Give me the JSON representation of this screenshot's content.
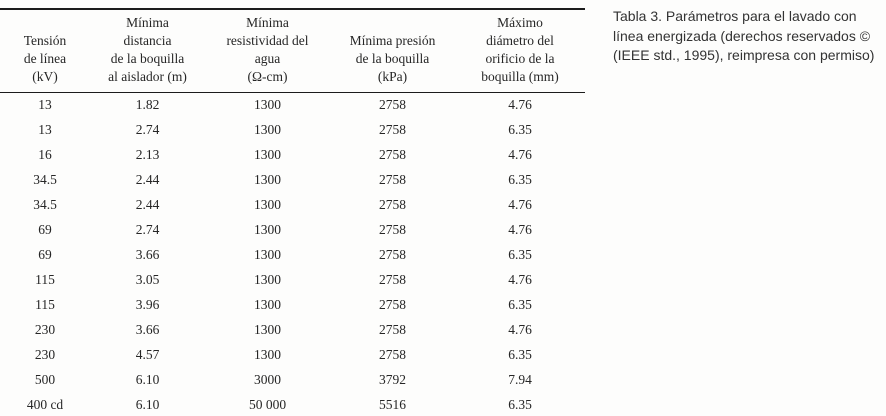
{
  "table": {
    "col_headers": [
      "Tensión\nde línea\n(kV)",
      "Mínima\ndistancia\nde la boquilla\nal aislador (m)",
      "Mínima\nresistividad del\nagua\n(Ω-cm)",
      "Mínima presión\nde la boquilla\n(kPa)",
      "Máximo\ndiámetro del\norificio de la\nboquilla (mm)"
    ],
    "rows": [
      [
        "13",
        "1.82",
        "1300",
        "2758",
        "4.76"
      ],
      [
        "13",
        "2.74",
        "1300",
        "2758",
        "6.35"
      ],
      [
        "16",
        "2.13",
        "1300",
        "2758",
        "4.76"
      ],
      [
        "34.5",
        "2.44",
        "1300",
        "2758",
        "6.35"
      ],
      [
        "34.5",
        "2.44",
        "1300",
        "2758",
        "4.76"
      ],
      [
        "69",
        "2.74",
        "1300",
        "2758",
        "4.76"
      ],
      [
        "69",
        "3.66",
        "1300",
        "2758",
        "6.35"
      ],
      [
        "115",
        "3.05",
        "1300",
        "2758",
        "4.76"
      ],
      [
        "115",
        "3.96",
        "1300",
        "2758",
        "6.35"
      ],
      [
        "230",
        "3.66",
        "1300",
        "2758",
        "4.76"
      ],
      [
        "230",
        "4.57",
        "1300",
        "2758",
        "6.35"
      ],
      [
        "500",
        "6.10",
        "3000",
        "3792",
        "7.94"
      ],
      [
        "400 cd",
        "6.10",
        "50 000",
        "5516",
        "6.35"
      ]
    ]
  },
  "caption": {
    "text": "Tabla 3.  Parámetros para el lavado con\nlínea energizada (derechos reservados ©\n(IEEE std., 1995), reimpresa con permiso)"
  }
}
